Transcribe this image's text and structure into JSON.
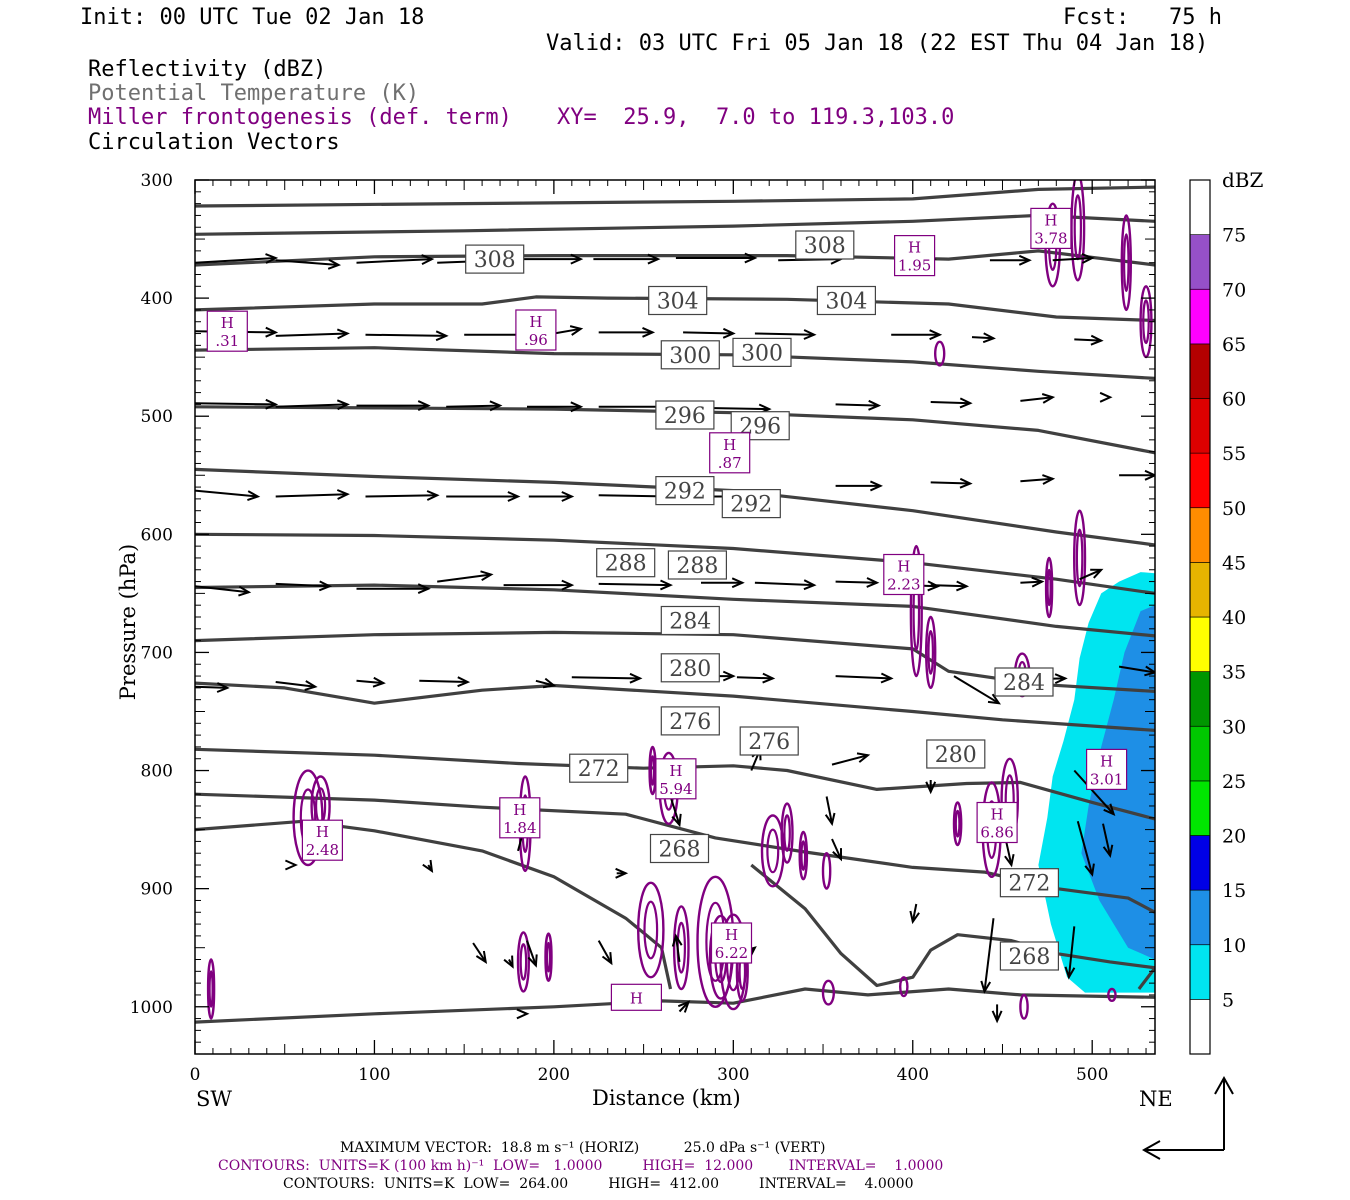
{
  "header": {
    "init": "Init: 00 UTC Tue 02 Jan 18",
    "fcst": "Fcst:   75 h",
    "valid": "Valid: 03 UTC Fri 05 Jan 18 (22 EST Thu 04 Jan 18)",
    "field1": "Reflectivity (dBZ)",
    "field2": "Potential Temperature (K)",
    "field3": "Miller frontogenesis (def. term)",
    "xy": "XY=  25.9,  7.0 to 119.3,103.0",
    "field4": "Circulation Vectors"
  },
  "colors": {
    "theta": "#404040",
    "fronto": "#800080",
    "vector": "#000000",
    "refl_light": "#00e5f0",
    "refl_dark": "#1e8fe6"
  },
  "chart_data": {
    "type": "cross-section",
    "xlabel": "Distance (km)",
    "ylabel": "Pressure (hPa)",
    "xlim": [
      0,
      535
    ],
    "ylim": [
      1040,
      300
    ],
    "x_ticks": [
      "0",
      "100",
      "200",
      "300",
      "400",
      "500"
    ],
    "y_ticks": [
      "300",
      "400",
      "500",
      "600",
      "700",
      "800",
      "900",
      "1000"
    ],
    "left_end_label": "SW",
    "right_end_label": "NE",
    "colorbar": {
      "title": "dBZ",
      "levels": [
        "5",
        "10",
        "15",
        "20",
        "25",
        "30",
        "35",
        "40",
        "45",
        "50",
        "55",
        "60",
        "65",
        "70",
        "75"
      ],
      "colors": [
        "#ffffff",
        "#00e5f0",
        "#1e8fe6",
        "#0000e6",
        "#00e600",
        "#00c800",
        "#009600",
        "#ffff00",
        "#e6b400",
        "#ff8c00",
        "#ff0000",
        "#dc0000",
        "#b40000",
        "#ff00ff",
        "#9650c8",
        "#ffffff"
      ]
    },
    "theta_labels": [
      {
        "text": "308",
        "x": 167,
        "p": 367
      },
      {
        "text": "308",
        "x": 351,
        "p": 355
      },
      {
        "text": "304",
        "x": 269,
        "p": 402
      },
      {
        "text": "304",
        "x": 363,
        "p": 402
      },
      {
        "text": "300",
        "x": 276,
        "p": 448
      },
      {
        "text": "300",
        "x": 316,
        "p": 446
      },
      {
        "text": "296",
        "x": 273,
        "p": 499
      },
      {
        "text": "296",
        "x": 315,
        "p": 508
      },
      {
        "text": "292",
        "x": 273,
        "p": 563
      },
      {
        "text": "292",
        "x": 310,
        "p": 574
      },
      {
        "text": "288",
        "x": 240,
        "p": 624
      },
      {
        "text": "288",
        "x": 280,
        "p": 626
      },
      {
        "text": "284",
        "x": 276,
        "p": 673
      },
      {
        "text": "284",
        "x": 462,
        "p": 725
      },
      {
        "text": "280",
        "x": 276,
        "p": 713
      },
      {
        "text": "280",
        "x": 424,
        "p": 786
      },
      {
        "text": "276",
        "x": 276,
        "p": 758
      },
      {
        "text": "276",
        "x": 320,
        "p": 775
      },
      {
        "text": "272",
        "x": 225,
        "p": 798
      },
      {
        "text": "272",
        "x": 465,
        "p": 895
      },
      {
        "text": "268",
        "x": 270,
        "p": 866
      },
      {
        "text": "268",
        "x": 465,
        "p": 957
      }
    ],
    "frontogenesis_maxima": [
      {
        "label": "H",
        "value": ".31",
        "x": 18,
        "p": 428
      },
      {
        "label": "H",
        "value": ".96",
        "x": 190,
        "p": 427
      },
      {
        "label": "H",
        "value": "1.95",
        "x": 401,
        "p": 364
      },
      {
        "label": "H",
        "value": "3.78",
        "x": 477,
        "p": 341
      },
      {
        "label": "H",
        "value": ".87",
        "x": 298,
        "p": 531
      },
      {
        "label": "H",
        "value": "2.23",
        "x": 395,
        "p": 634
      },
      {
        "label": "H",
        "value": "2.48",
        "x": 71,
        "p": 859
      },
      {
        "label": "H",
        "value": "1.84",
        "x": 181,
        "p": 840
      },
      {
        "label": "H",
        "value": "5.94",
        "x": 268,
        "p": 807
      },
      {
        "label": "H",
        "value": "6.22",
        "x": 299,
        "p": 946
      },
      {
        "label": "H",
        "value": "6.86",
        "x": 447,
        "p": 844
      },
      {
        "label": "H",
        "value": "3.01",
        "x": 508,
        "p": 799
      },
      {
        "label": "H",
        "value": "",
        "x": 246,
        "p": 992
      }
    ]
  },
  "footer": {
    "max_vector": "MAXIMUM VECTOR:  18.8 m s⁻¹ (HORIZ)          25.0 dPa s⁻¹ (VERT)",
    "contours1": "CONTOURS:  UNITS=K (100 km h)⁻¹  LOW=   1.0000         HIGH=  12.000        INTERVAL=    1.0000",
    "contours2": "CONTOURS:  UNITS=K  LOW=  264.00         HIGH=  412.00         INTERVAL=    4.0000"
  }
}
